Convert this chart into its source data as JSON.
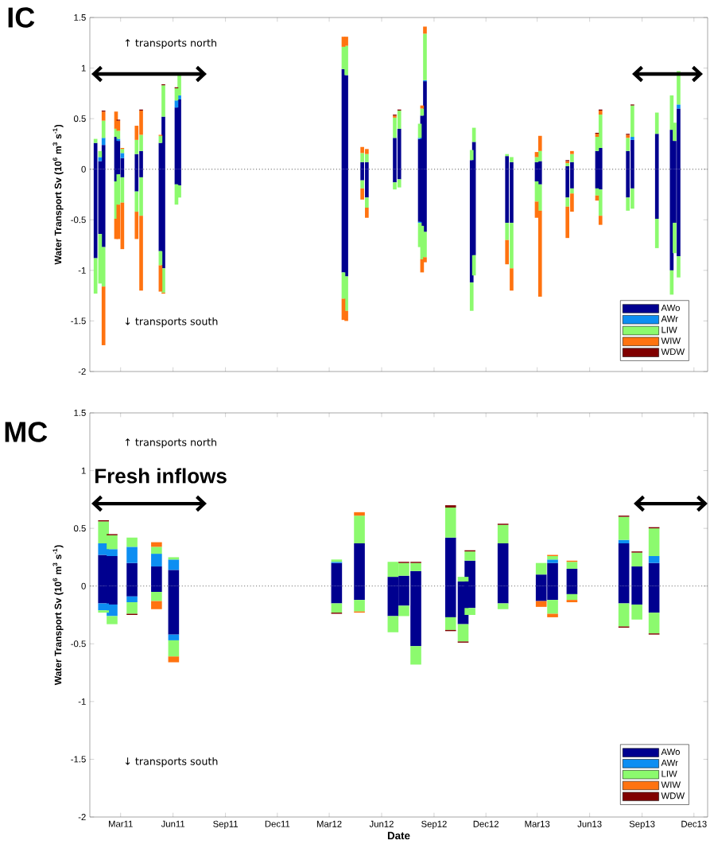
{
  "chart_data": [
    {
      "type": "bar",
      "stacked": true,
      "title": "IC",
      "ylabel": "Water Transport Sv (10$^{6}$ m$^{3}$ s$^{-1}$)",
      "annotations": [
        "↑ transports north",
        "↓ transports south"
      ],
      "x": [
        "2011-01-16",
        "2011-01-24",
        "2011-01-30",
        "2011-02-21",
        "2011-02-25",
        "2011-03-04",
        "2011-03-29",
        "2011-04-06",
        "2011-05-10",
        "2011-05-15",
        "2011-06-07",
        "2011-06-12",
        "2012-03-26",
        "2012-03-31",
        "2012-04-28",
        "2012-05-06",
        "2012-06-24",
        "2012-07-02",
        "2012-08-07",
        "2012-08-11",
        "2012-08-16",
        "2012-11-06",
        "2012-11-10",
        "2013-01-07",
        "2013-01-15",
        "2013-02-28",
        "2013-03-06",
        "2013-04-23",
        "2013-05-01",
        "2013-06-14",
        "2013-06-20",
        "2013-08-07",
        "2013-08-15",
        "2013-09-27",
        "2013-10-23",
        "2013-10-28",
        "2013-11-04"
      ],
      "xlim": [
        "2011-01-06",
        "2013-12-25"
      ],
      "xticks": [
        {
          "value": "2011-03-01",
          "label": null
        },
        {
          "value": "2011-06-01",
          "label": null
        },
        {
          "value": "2011-09-01",
          "label": null
        },
        {
          "value": "2011-12-01",
          "label": null
        },
        {
          "value": "2012-03-01",
          "label": null
        },
        {
          "value": "2012-06-01",
          "label": null
        },
        {
          "value": "2012-09-01",
          "label": null
        },
        {
          "value": "2012-12-01",
          "label": null
        },
        {
          "value": "2013-03-01",
          "label": null
        },
        {
          "value": "2013-06-01",
          "label": null
        },
        {
          "value": "2013-09-01",
          "label": null
        },
        {
          "value": "2013-12-01",
          "label": null
        }
      ],
      "ylim": [
        -2,
        1.5
      ],
      "yticks": [
        -2,
        -1.5,
        -1,
        -0.5,
        0,
        0.5,
        1,
        1.5
      ],
      "tick_labels": "y",
      "legend": "bottom right",
      "ref_lines": [
        {
          "axis": "y",
          "value": 0,
          "color": "#555555",
          "line_style": "dotted"
        }
      ],
      "series": [
        {
          "name": "AWo",
          "color": "#00008f",
          "values": [
            0.26,
            0.08,
            0.24,
            0.32,
            0.28,
            0.11,
            0.15,
            0.18,
            0.26,
            0.52,
            0.61,
            0.69,
            0.99,
            0.93,
            0.07,
            0.07,
            0.31,
            0.4,
            0.3,
            0.53,
            0.87,
            0.09,
            0.27,
            0.13,
            0.07,
            0.07,
            0.08,
            0.03,
            0.07,
            0.18,
            0.21,
            0.18,
            0.29,
            0.35,
            0.39,
            0.28,
            0.6
          ]
        },
        {
          "name": "AWr",
          "color": "#0d8ef2",
          "values": [
            null,
            0.04,
            0.07,
            null,
            0.02,
            0.05,
            null,
            null,
            null,
            null,
            0.07,
            0.04,
            null,
            null,
            null,
            null,
            null,
            null,
            0.01,
            null,
            0.01,
            null,
            null,
            null,
            null,
            null,
            null,
            null,
            null,
            null,
            null,
            null,
            0.03,
            null,
            null,
            null,
            0.04
          ]
        },
        {
          "name": "LIW",
          "color": "#8cfa6e",
          "values": [
            0.04,
            0.06,
            0.17,
            0.08,
            0.08,
            0.04,
            0.14,
            0.16,
            0.07,
            0.31,
            0.12,
            0.21,
            0.22,
            0.29,
            0.09,
            0.08,
            0.2,
            0.18,
            0.14,
            0.07,
            0.46,
            0.1,
            0.14,
            0.02,
            0.05,
            0.05,
            0.1,
            0.03,
            0.08,
            0.14,
            0.33,
            0.13,
            0.31,
            0.21,
            0.34,
            0.18,
            0.33
          ]
        },
        {
          "name": "WIW",
          "color": "#ff7310",
          "values": [
            null,
            null,
            0.09,
            0.17,
            0.1,
            0.01,
            0.14,
            0.24,
            0.01,
            null,
            null,
            null,
            0.1,
            0.09,
            0.06,
            0.05,
            0.02,
            null,
            null,
            0.03,
            0.07,
            null,
            null,
            null,
            null,
            0.05,
            0.15,
            0.02,
            0.03,
            0.03,
            0.04,
            0.03,
            null,
            null,
            null,
            null,
            null
          ]
        },
        {
          "name": "WDW",
          "color": "#800000",
          "values": [
            null,
            null,
            0.01,
            null,
            0.01,
            null,
            null,
            0.01,
            null,
            0.01,
            0.01,
            null,
            null,
            null,
            null,
            null,
            0.01,
            0.01,
            null,
            null,
            null,
            null,
            null,
            null,
            null,
            null,
            null,
            0.01,
            null,
            0.01,
            0.01,
            0.01,
            0.01,
            null,
            null,
            null,
            null
          ]
        },
        {
          "color": "#00008f",
          "values": [
            -0.88,
            -0.64,
            -0.77,
            -0.12,
            -0.05,
            -0.08,
            -0.22,
            -0.08,
            -0.81,
            -0.98,
            -0.15,
            -0.16,
            -1.02,
            -1.06,
            -0.11,
            -0.28,
            -0.13,
            -0.1,
            -0.52,
            -0.56,
            -0.62,
            -1.12,
            -0.85,
            -0.53,
            -0.53,
            -0.12,
            -0.15,
            -0.28,
            -0.19,
            -0.19,
            -0.2,
            -0.28,
            -0.19,
            -0.49,
            -1.0,
            -0.53,
            -0.86
          ]
        },
        {
          "color": "#0d8ef2",
          "values": [
            null,
            null,
            null,
            null,
            null,
            null,
            null,
            null,
            null,
            null,
            null,
            null,
            null,
            null,
            null,
            null,
            null,
            null,
            -0.01,
            null,
            null,
            null,
            null,
            null,
            null,
            null,
            null,
            null,
            null,
            null,
            null,
            null,
            null,
            null,
            null,
            null,
            null
          ]
        },
        {
          "color": "#8cfa6e",
          "values": [
            -0.35,
            -0.49,
            -0.39,
            -0.37,
            -0.3,
            -0.25,
            -0.2,
            -0.38,
            -0.14,
            -0.24,
            -0.2,
            -0.12,
            -0.26,
            -0.34,
            -0.08,
            -0.1,
            -0.07,
            -0.08,
            -0.24,
            -0.33,
            -0.25,
            -0.28,
            -0.2,
            -0.17,
            -0.45,
            -0.2,
            -0.26,
            -0.09,
            -0.05,
            -0.07,
            -0.26,
            -0.13,
            -0.2,
            -0.29,
            -0.24,
            -0.3,
            -0.21
          ]
        },
        {
          "color": "#ff7310",
          "values": [
            null,
            null,
            -0.58,
            -0.2,
            -0.34,
            -0.46,
            -0.27,
            -0.74,
            -0.26,
            -0.01,
            null,
            null,
            -0.21,
            -0.1,
            -0.11,
            -0.1,
            null,
            null,
            null,
            -0.13,
            -0.05,
            null,
            null,
            -0.24,
            -0.22,
            -0.16,
            -0.85,
            -0.31,
            -0.18,
            -0.05,
            -0.09,
            null,
            null,
            null,
            null,
            null,
            null
          ]
        }
      ]
    },
    {
      "type": "bar",
      "stacked": true,
      "title": "MC",
      "xlabel": "Date",
      "ylabel": "Water Transport Sv (10$^{6}$ m$^{3}$ s$^{-1}$)",
      "annotations": [
        "↑ transports north",
        "Fresh inflows",
        "↓ transports south"
      ],
      "x": [
        "2011-01-30",
        "2011-02-14",
        "2011-03-21",
        "2011-05-03",
        "2011-06-02",
        "2012-03-14",
        "2012-04-23",
        "2012-06-21",
        "2012-07-10",
        "2012-07-31",
        "2012-09-30",
        "2012-10-22",
        "2012-11-03",
        "2012-12-31",
        "2013-03-08",
        "2013-03-28",
        "2013-05-01",
        "2013-07-31",
        "2013-08-23",
        "2013-09-22"
      ],
      "xlim": [
        "2011-01-06",
        "2013-12-25"
      ],
      "xticks": [
        {
          "value": "2011-03-01",
          "label": "Mar11"
        },
        {
          "value": "2011-06-01",
          "label": "Jun11"
        },
        {
          "value": "2011-09-01",
          "label": "Sep11"
        },
        {
          "value": "2011-12-01",
          "label": "Dec11"
        },
        {
          "value": "2012-03-01",
          "label": "Mar12"
        },
        {
          "value": "2012-06-01",
          "label": "Jun12"
        },
        {
          "value": "2012-09-01",
          "label": "Sep12"
        },
        {
          "value": "2012-12-01",
          "label": "Dec12"
        },
        {
          "value": "2013-03-01",
          "label": "Mar13"
        },
        {
          "value": "2013-06-01",
          "label": "Jun13"
        },
        {
          "value": "2013-09-01",
          "label": "Sep13"
        },
        {
          "value": "2013-12-01",
          "label": "Dec13"
        }
      ],
      "ylim": [
        -2,
        1.5
      ],
      "yticks": [
        -2,
        -1.5,
        -1,
        -0.5,
        0,
        0.5,
        1,
        1.5
      ],
      "legend": "bottom right",
      "ref_lines": [
        {
          "axis": "y",
          "value": 0,
          "color": "#555555",
          "line_style": "dotted"
        }
      ],
      "series": [
        {
          "name": "AWo",
          "color": "#00008f",
          "values": [
            0.27,
            0.26,
            0.2,
            0.17,
            0.14,
            0.2,
            0.37,
            0.08,
            0.09,
            0.13,
            0.42,
            0.04,
            0.22,
            0.37,
            0.1,
            0.2,
            0.15,
            0.37,
            0.17,
            0.2
          ]
        },
        {
          "name": "AWr",
          "color": "#0d8ef2",
          "values": [
            0.1,
            0.06,
            0.14,
            0.11,
            0.09,
            0.01,
            null,
            null,
            null,
            null,
            null,
            null,
            null,
            null,
            null,
            0.03,
            null,
            0.03,
            null,
            0.06
          ]
        },
        {
          "name": "LIW",
          "color": "#8cfa6e",
          "values": [
            0.19,
            0.12,
            0.08,
            0.06,
            0.02,
            0.02,
            0.24,
            0.13,
            0.11,
            0.07,
            0.26,
            0.04,
            0.08,
            0.16,
            0.1,
            0.03,
            0.06,
            0.2,
            0.12,
            0.24
          ]
        },
        {
          "name": "WIW",
          "color": "#ff7310",
          "values": [
            null,
            null,
            null,
            0.04,
            null,
            null,
            0.03,
            null,
            null,
            null,
            null,
            null,
            null,
            null,
            null,
            0.01,
            0.01,
            null,
            null,
            null
          ]
        },
        {
          "name": "WDW",
          "color": "#800000",
          "values": [
            0.01,
            0.01,
            null,
            null,
            null,
            null,
            null,
            null,
            0.01,
            0.01,
            0.02,
            null,
            0.01,
            0.01,
            null,
            null,
            null,
            0.01,
            0.01,
            0.01
          ]
        },
        {
          "color": "#00008f",
          "values": [
            -0.15,
            -0.16,
            -0.09,
            -0.05,
            -0.42,
            -0.15,
            -0.12,
            -0.26,
            -0.17,
            -0.52,
            -0.27,
            -0.33,
            -0.19,
            -0.15,
            -0.13,
            -0.12,
            -0.07,
            -0.15,
            -0.16,
            -0.23
          ]
        },
        {
          "color": "#0d8ef2",
          "values": [
            -0.06,
            -0.1,
            -0.05,
            null,
            -0.05,
            null,
            null,
            null,
            null,
            null,
            null,
            null,
            null,
            null,
            null,
            null,
            null,
            null,
            null,
            null
          ]
        },
        {
          "color": "#8cfa6e",
          "values": [
            -0.02,
            -0.07,
            -0.1,
            -0.08,
            -0.14,
            -0.08,
            -0.1,
            -0.14,
            -0.09,
            -0.16,
            -0.11,
            -0.15,
            -0.06,
            -0.05,
            null,
            -0.12,
            -0.05,
            -0.2,
            -0.13,
            -0.18
          ]
        },
        {
          "color": "#ff7310",
          "values": [
            null,
            null,
            null,
            -0.07,
            -0.05,
            null,
            -0.01,
            null,
            null,
            null,
            null,
            null,
            null,
            null,
            -0.05,
            -0.03,
            -0.02,
            null,
            null,
            null
          ]
        },
        {
          "color": "#800000",
          "values": [
            null,
            null,
            -0.01,
            null,
            null,
            -0.01,
            null,
            null,
            null,
            null,
            -0.01,
            -0.01,
            null,
            null,
            null,
            null,
            null,
            -0.01,
            null,
            -0.01
          ]
        }
      ]
    }
  ]
}
